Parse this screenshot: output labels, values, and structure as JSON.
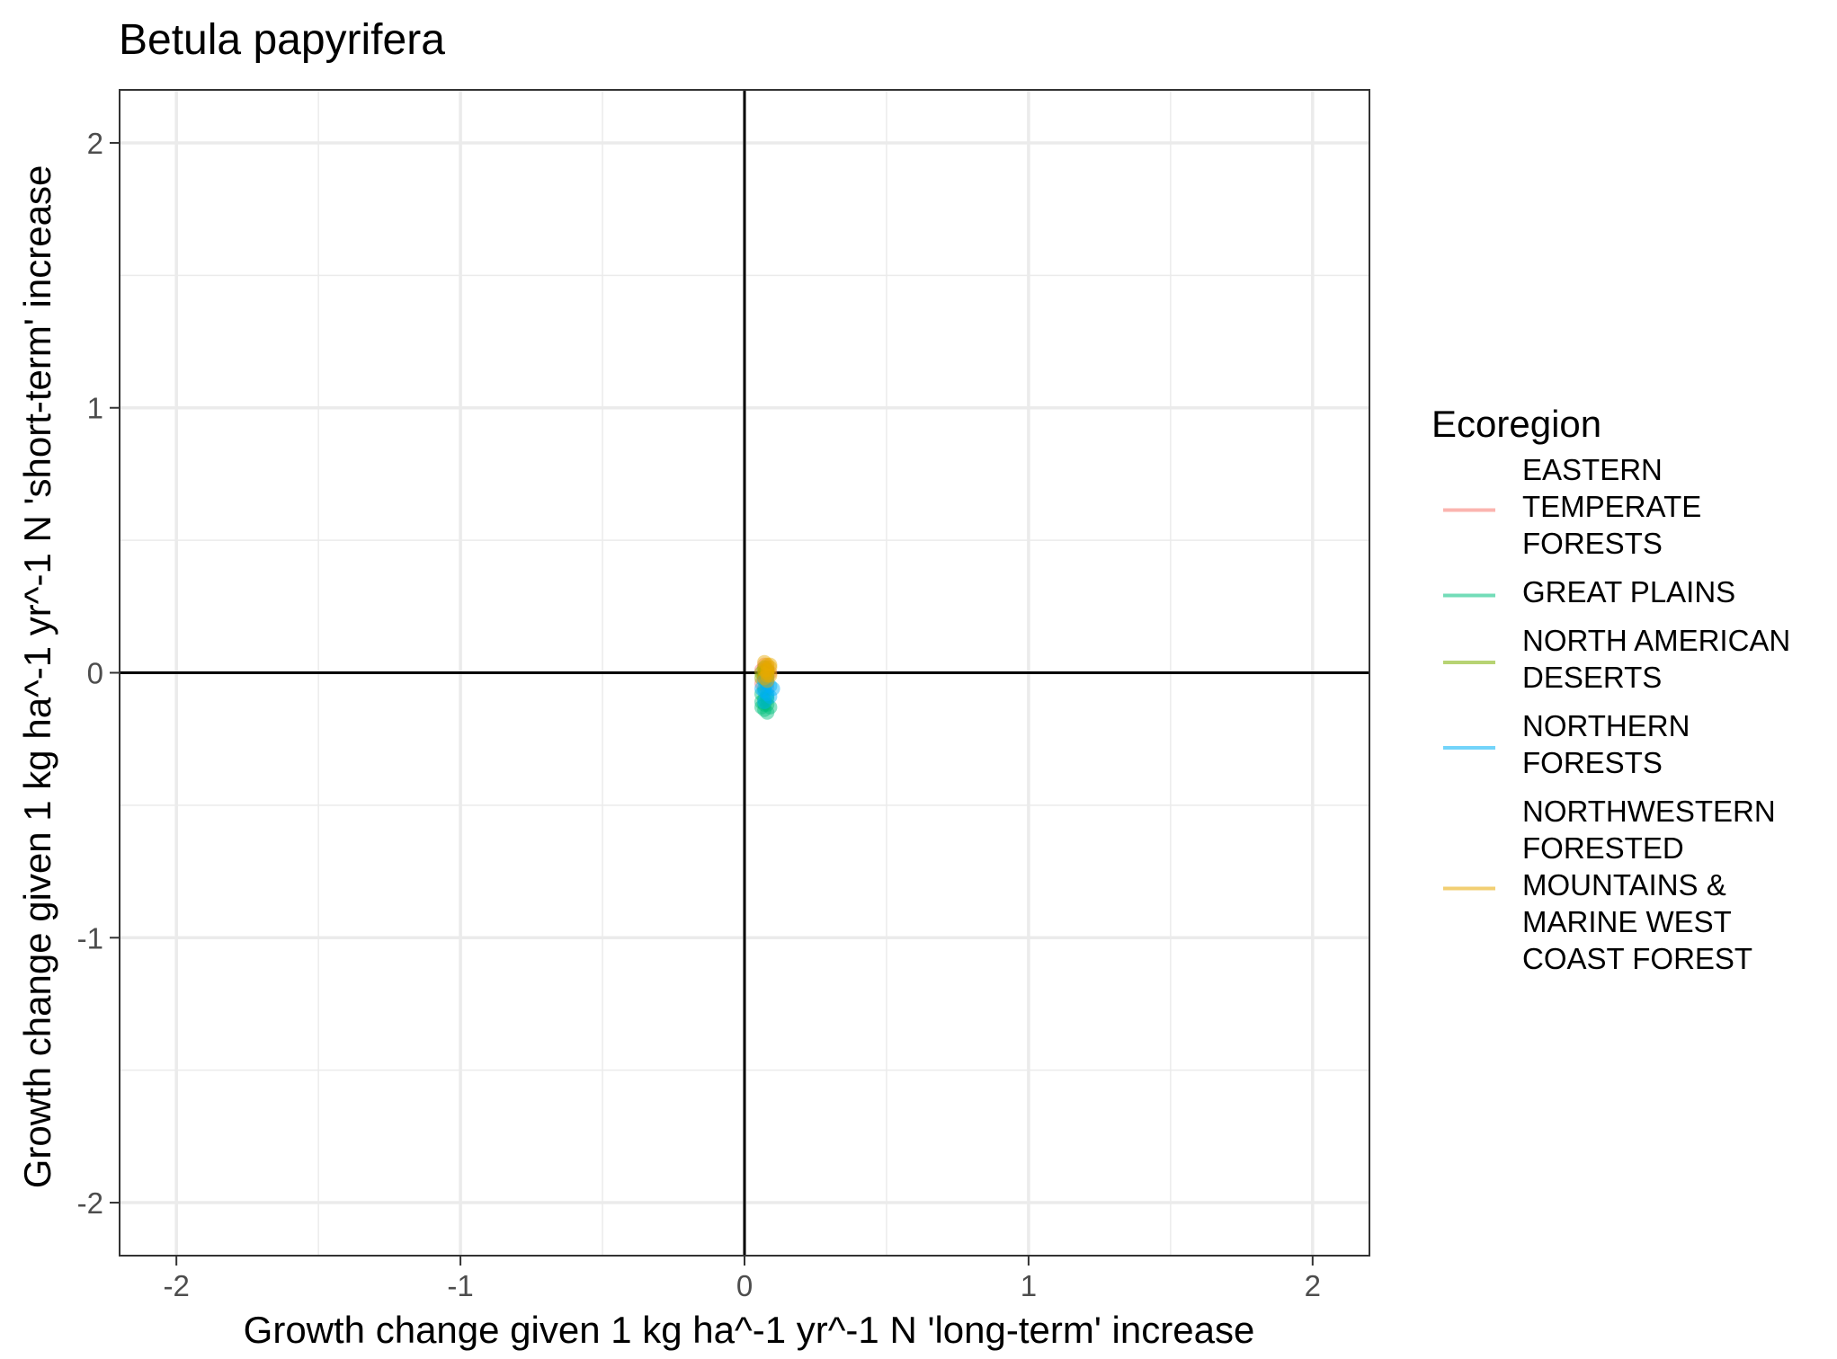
{
  "chart_data": {
    "type": "scatter",
    "title": "Betula papyrifera",
    "xlabel": "Growth change given 1 kg ha^-1 yr^-1 N 'long-term' increase",
    "ylabel": "Growth change given 1 kg ha^-1 yr^-1 N 'short-term' increase",
    "xlim": [
      -2.2,
      2.2
    ],
    "ylim": [
      -2.2,
      2.2
    ],
    "x_ticks": [
      -2,
      -1,
      0,
      1,
      2
    ],
    "y_ticks": [
      -2,
      -1,
      0,
      1,
      2
    ],
    "x_tick_labels": [
      "-2",
      "-1",
      "0",
      "1",
      "2"
    ],
    "y_tick_labels": [
      "-2",
      "-1",
      "0",
      "1",
      "2"
    ],
    "grid": true,
    "reference_lines": {
      "x": 0,
      "y": 0
    },
    "legend": {
      "title": "Ecoregion",
      "placement": "right"
    },
    "series": [
      {
        "name": "EASTERN TEMPERATE FORESTS",
        "legend_lines": [
          "EASTERN",
          "TEMPERATE",
          "FORESTS"
        ],
        "color": "#F8766D",
        "points": [
          [
            0.07,
            -0.01
          ],
          [
            0.08,
            0.02
          ],
          [
            0.06,
            0.01
          ],
          [
            0.08,
            -0.03
          ],
          [
            0.07,
            0.03
          ],
          [
            0.09,
            0.0
          ],
          [
            0.06,
            -0.04
          ],
          [
            0.08,
            -0.06
          ],
          [
            0.07,
            -0.02
          ]
        ]
      },
      {
        "name": "GREAT PLAINS",
        "legend_lines": [
          "GREAT PLAINS"
        ],
        "color": "#00BF7D",
        "points": [
          [
            0.07,
            -0.12
          ],
          [
            0.08,
            -0.1
          ],
          [
            0.06,
            -0.11
          ],
          [
            0.09,
            -0.13
          ],
          [
            0.07,
            -0.14
          ],
          [
            0.08,
            -0.09
          ],
          [
            0.06,
            -0.08
          ],
          [
            0.07,
            -0.06
          ],
          [
            0.08,
            -0.12
          ],
          [
            0.07,
            -0.1
          ],
          [
            0.06,
            -0.13
          ],
          [
            0.08,
            -0.15
          ]
        ]
      },
      {
        "name": "NORTH AMERICAN DESERTS",
        "legend_lines": [
          "NORTH AMERICAN",
          "DESERTS"
        ],
        "color": "#7CAE00",
        "points": [
          [
            0.07,
            0.0
          ],
          [
            0.08,
            0.01
          ],
          [
            0.06,
            -0.02
          ],
          [
            0.07,
            0.02
          ],
          [
            0.08,
            -0.01
          ],
          [
            0.06,
            0.0
          ]
        ]
      },
      {
        "name": "NORTHERN FORESTS",
        "legend_lines": [
          "NORTHERN",
          "FORESTS"
        ],
        "color": "#00B0F6",
        "points": [
          [
            0.08,
            -0.04
          ],
          [
            0.07,
            -0.07
          ],
          [
            0.09,
            -0.05
          ],
          [
            0.06,
            -0.06
          ],
          [
            0.08,
            -0.08
          ],
          [
            0.07,
            -0.03
          ],
          [
            0.09,
            -0.09
          ],
          [
            0.1,
            -0.06
          ],
          [
            0.07,
            -0.11
          ],
          [
            0.08,
            -0.02
          ]
        ]
      },
      {
        "name": "NORTHWESTERN FORESTED MOUNTAINS & MARINE WEST COAST FOREST",
        "legend_lines": [
          "NORTHWESTERN",
          "FORESTED",
          "MOUNTAINS &",
          "MARINE WEST",
          "COAST FOREST"
        ],
        "color": "#E7A800",
        "points": [
          [
            0.08,
            0.0
          ],
          [
            0.07,
            0.01
          ],
          [
            0.09,
            -0.01
          ],
          [
            0.08,
            0.03
          ],
          [
            0.07,
            -0.02
          ],
          [
            0.09,
            0.02
          ],
          [
            0.08,
            -0.03
          ],
          [
            0.07,
            0.04
          ],
          [
            0.08,
            0.01
          ],
          [
            0.09,
            0.03
          ],
          [
            0.08,
            -0.01
          ]
        ]
      }
    ]
  }
}
